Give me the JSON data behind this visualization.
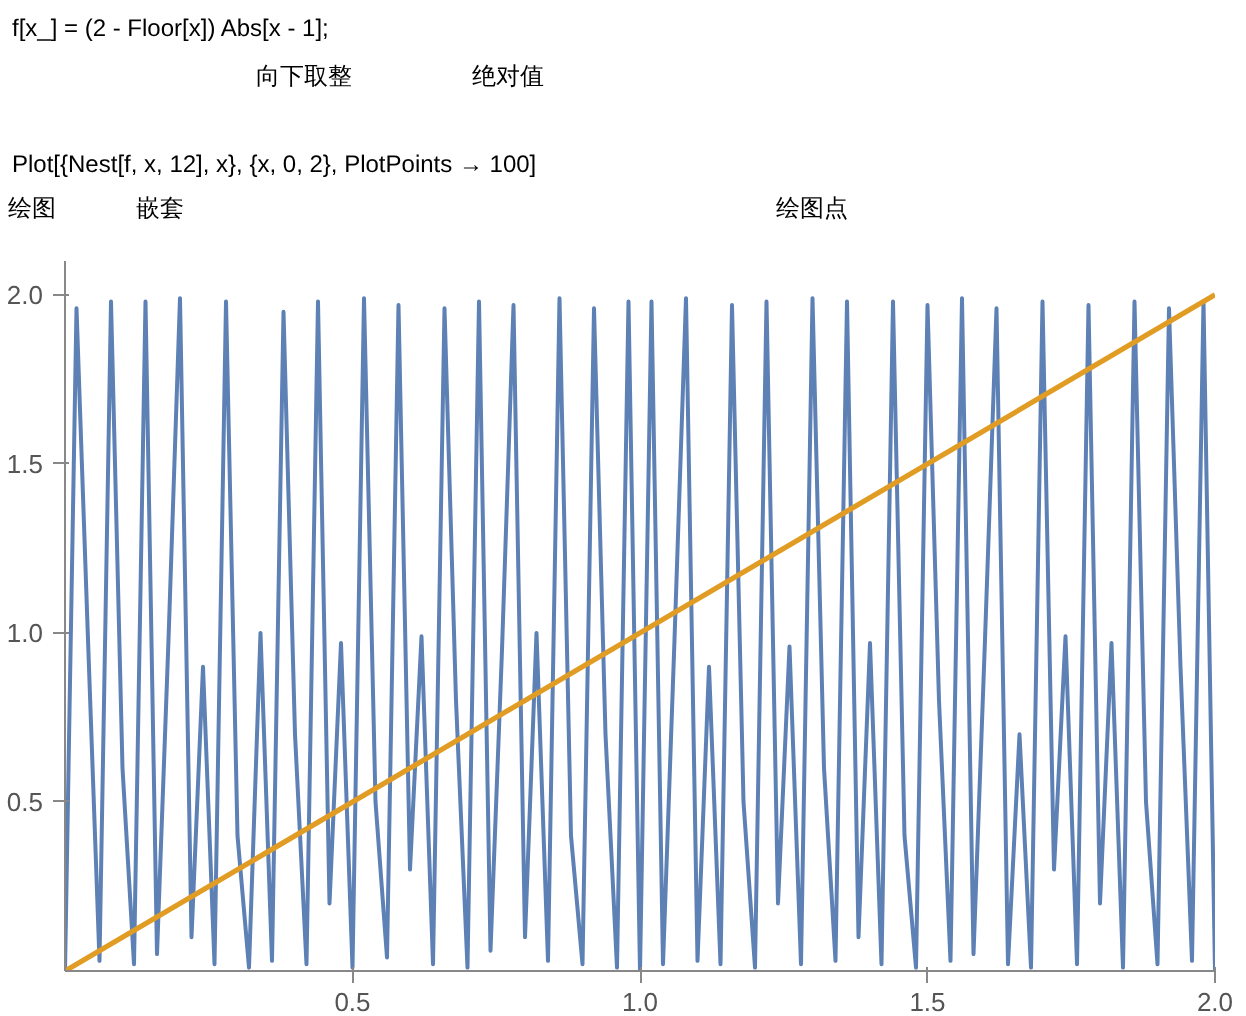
{
  "chart_data": {
    "type": "line",
    "annotations": [
      "f[x_] = (2 - Floor[x]) Abs[x - 1];",
      "向下取整",
      "绝对值",
      "Plot[{Nest[f, x, 12], x}, {x, 0, 2}, PlotPoints → 100]",
      "绘图",
      "嵌套",
      "绘图点"
    ],
    "x": [
      0,
      0.02,
      0.04,
      0.06,
      0.08,
      0.1,
      0.12,
      0.14,
      0.16,
      0.18,
      0.2,
      0.22,
      0.24,
      0.26,
      0.28,
      0.3,
      0.32,
      0.34,
      0.36,
      0.38,
      0.4,
      0.42,
      0.44,
      0.46,
      0.48,
      0.5,
      0.52,
      0.54,
      0.56,
      0.58,
      0.6,
      0.62,
      0.64,
      0.66,
      0.68,
      0.7,
      0.72,
      0.74,
      0.76,
      0.78,
      0.8,
      0.82,
      0.84,
      0.86,
      0.88,
      0.9,
      0.92,
      0.94,
      0.96,
      0.98,
      1.0,
      1.02,
      1.04,
      1.06,
      1.08,
      1.1,
      1.12,
      1.14,
      1.16,
      1.18,
      1.2,
      1.22,
      1.24,
      1.26,
      1.28,
      1.3,
      1.32,
      1.34,
      1.36,
      1.38,
      1.4,
      1.42,
      1.44,
      1.46,
      1.48,
      1.5,
      1.52,
      1.54,
      1.56,
      1.58,
      1.6,
      1.62,
      1.64,
      1.66,
      1.68,
      1.7,
      1.72,
      1.74,
      1.76,
      1.78,
      1.8,
      1.82,
      1.84,
      1.86,
      1.88,
      1.9,
      1.92,
      1.94,
      1.96,
      1.98,
      2.0
    ],
    "series": [
      {
        "color": "#5e81b5",
        "values": [
          0,
          1.96,
          0.98,
          0.03,
          1.98,
          0.6,
          0.02,
          1.98,
          0.05,
          0.98,
          1.99,
          0.1,
          0.9,
          0.02,
          1.98,
          0.4,
          0.01,
          1.0,
          0.03,
          1.95,
          0.7,
          0.02,
          1.98,
          0.2,
          0.97,
          0.01,
          1.99,
          0.5,
          0.04,
          1.97,
          0.3,
          0.99,
          0.02,
          1.96,
          0.8,
          0.01,
          1.98,
          0.06,
          0.95,
          1.97,
          0.1,
          1.0,
          0.03,
          1.99,
          0.4,
          0.02,
          1.96,
          0.7,
          0.01,
          1.98,
          0.0,
          1.98,
          0.02,
          0.98,
          1.99,
          0.03,
          0.9,
          0.02,
          1.97,
          0.5,
          0.01,
          1.98,
          0.2,
          0.96,
          0.02,
          1.99,
          0.6,
          0.03,
          1.98,
          0.1,
          0.97,
          0.02,
          1.98,
          0.4,
          0.01,
          1.97,
          0.8,
          0.03,
          1.99,
          0.05,
          0.98,
          1.96,
          0.02,
          0.7,
          0.01,
          1.98,
          0.3,
          0.99,
          0.02,
          1.97,
          0.2,
          0.97,
          0.01,
          1.98,
          0.5,
          0.02,
          1.96,
          0.9,
          0.03,
          1.98,
          0.0
        ]
      },
      {
        "color": "#e19c24",
        "x": [
          0,
          2
        ],
        "values": [
          0,
          2
        ]
      }
    ],
    "xlim": [
      0,
      2.0
    ],
    "ylim": [
      0,
      2.1
    ],
    "xticks": [
      {
        "value": 0.5,
        "label": "0.5"
      },
      {
        "value": 1,
        "label": "1.0"
      },
      {
        "value": 1.5,
        "label": "1.5"
      },
      {
        "value": 2,
        "label": "2.0"
      }
    ],
    "yticks": [
      {
        "value": 0.5,
        "label": "0.5"
      },
      {
        "value": 1,
        "label": "1.0"
      },
      {
        "value": 1.5,
        "label": "1.5"
      },
      {
        "value": 2,
        "label": "2.0"
      }
    ],
    "line_style": "solid"
  }
}
